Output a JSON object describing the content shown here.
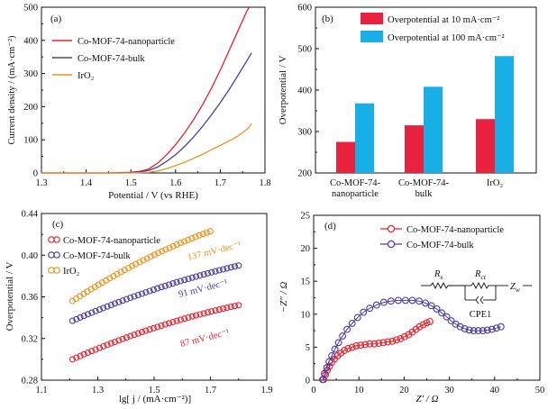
{
  "chart_data": [
    {
      "panel": "(a)",
      "type": "line",
      "xlabel": "Potential / V (vs RHE)",
      "ylabel": "Current density / (mA·cm⁻²)",
      "xlim": [
        1.3,
        1.8
      ],
      "ylim": [
        0,
        500
      ],
      "xticks": [
        "1.3",
        "1.4",
        "1.5",
        "1.6",
        "1.7",
        "1.8"
      ],
      "yticks": [
        "0",
        "100",
        "200",
        "300",
        "400",
        "500"
      ],
      "legend_position": "top-left",
      "series": [
        {
          "name": "Co-MOF-74-nanoparticle",
          "color": "#e8222e",
          "x": [
            1.3,
            1.45,
            1.5,
            1.52,
            1.54,
            1.56,
            1.58,
            1.6,
            1.62,
            1.64,
            1.66,
            1.68,
            1.7,
            1.72,
            1.74,
            1.76,
            1.765
          ],
          "y": [
            0,
            0,
            2,
            5,
            12,
            30,
            55,
            85,
            120,
            160,
            205,
            255,
            310,
            370,
            430,
            490,
            500
          ]
        },
        {
          "name": "Co-MOF-74-bulk",
          "color": "#4b3ea5",
          "x": [
            1.3,
            1.48,
            1.52,
            1.54,
            1.56,
            1.58,
            1.6,
            1.62,
            1.64,
            1.66,
            1.68,
            1.7,
            1.72,
            1.74,
            1.76,
            1.77
          ],
          "y": [
            0,
            0,
            3,
            8,
            18,
            35,
            55,
            80,
            108,
            140,
            175,
            212,
            252,
            295,
            340,
            362
          ]
        },
        {
          "name": "IrO₂",
          "color": "#f0931e",
          "x": [
            1.3,
            1.5,
            1.54,
            1.56,
            1.58,
            1.6,
            1.62,
            1.64,
            1.66,
            1.68,
            1.7,
            1.72,
            1.74,
            1.76,
            1.77
          ],
          "y": [
            0,
            0,
            2,
            6,
            13,
            22,
            32,
            44,
            56,
            70,
            83,
            97,
            112,
            132,
            148
          ]
        }
      ]
    },
    {
      "panel": "(b)",
      "type": "bar",
      "ylabel": "Overpotential / V",
      "ylim": [
        200,
        600
      ],
      "yticks": [
        "200",
        "300",
        "400",
        "500",
        "600"
      ],
      "categories": [
        [
          "Co-MOF-74-",
          "nanoparticle"
        ],
        [
          "Co-MOF-74-",
          "bulk"
        ],
        [
          "IrO₂"
        ]
      ],
      "legend_position": "top-left",
      "series": [
        {
          "name": "Overpotential at 10 mA·cm⁻²",
          "color": "#e8223f",
          "values": [
            275,
            315,
            330
          ]
        },
        {
          "name": "Overpotential at 100 mA·cm⁻²",
          "color": "#18aee6",
          "values": [
            368,
            408,
            482
          ]
        }
      ]
    },
    {
      "panel": "(c)",
      "type": "scatter",
      "xlabel": "lg[ j / (mA·cm⁻²)]",
      "ylabel": "Overpotential / V",
      "xlim": [
        1.1,
        1.9
      ],
      "ylim": [
        0.28,
        0.44
      ],
      "xticks": [
        "1.1",
        "1.3",
        "1.5",
        "1.7",
        "1.9"
      ],
      "yticks": [
        "0.28",
        "0.32",
        "0.36",
        "0.40",
        "0.44"
      ],
      "legend_position": "top-left",
      "series": [
        {
          "name": "Co-MOF-74-nanoparticle",
          "color": "#e8222e",
          "x_range": [
            1.21,
            1.8
          ],
          "y_range": [
            0.3,
            0.352
          ],
          "curve": 0.35,
          "count": 44
        },
        {
          "name": "Co-MOF-74-bulk",
          "color": "#4b3ea5",
          "x_range": [
            1.21,
            1.8
          ],
          "y_range": [
            0.337,
            0.39
          ],
          "curve": 0.3,
          "count": 44
        },
        {
          "name": "IrO₂",
          "color": "#f0931e",
          "x_range": [
            1.21,
            1.7
          ],
          "y_range": [
            0.356,
            0.423
          ],
          "curve": 0.28,
          "count": 38
        }
      ],
      "annotations": [
        {
          "text": "137 mV·dec⁻¹",
          "color": "#f0931e"
        },
        {
          "text": "91 mV·dec⁻¹",
          "color": "#4b3ea5"
        },
        {
          "text": "87 mV·dec⁻¹",
          "color": "#e8222e"
        }
      ]
    },
    {
      "panel": "(d)",
      "type": "scatter",
      "xlabel": "Z′ / Ω",
      "ylabel": "−Z″ / Ω",
      "xlim": [
        0,
        50
      ],
      "ylim": [
        0,
        25
      ],
      "xticks": [
        "0",
        "10",
        "20",
        "30",
        "40",
        "50"
      ],
      "yticks": [
        "0",
        "5",
        "10",
        "15",
        "20",
        "25"
      ],
      "legend_position": "top-center",
      "series": [
        {
          "name": "Co-MOF-74-nanoparticle",
          "color": "#e8222e",
          "x": [
            2.2,
            2.6,
            3.0,
            3.5,
            4.0,
            4.6,
            5.3,
            6.0,
            6.8,
            7.6,
            8.5,
            9.4,
            10.4,
            11.4,
            12.4,
            13.4,
            14.4,
            15.4,
            16.4,
            17.4,
            18.3,
            19.2,
            20.1,
            21.0,
            21.8,
            22.6,
            23.4,
            24.2,
            25.0,
            25.7
          ],
          "y": [
            0.1,
            0.8,
            1.5,
            2.1,
            2.7,
            3.2,
            3.7,
            4.1,
            4.5,
            4.8,
            5.0,
            5.2,
            5.3,
            5.4,
            5.5,
            5.5,
            5.6,
            5.7,
            5.8,
            5.9,
            6.1,
            6.3,
            6.6,
            6.9,
            7.3,
            7.7,
            8.1,
            8.4,
            8.7,
            8.9
          ]
        },
        {
          "name": "Co-MOF-74-bulk",
          "color": "#4b3ea5",
          "x": [
            2.0,
            2.4,
            2.9,
            3.4,
            4.0,
            4.7,
            5.5,
            6.4,
            7.4,
            8.5,
            9.7,
            11.0,
            12.4,
            13.9,
            15.5,
            17.1,
            18.7,
            20.3,
            21.8,
            23.3,
            24.7,
            26.0,
            27.2,
            28.3,
            29.4,
            30.4,
            31.4,
            32.4,
            33.4,
            34.4,
            35.4,
            36.4,
            37.4,
            38.4,
            39.4,
            40.4,
            41.4
          ],
          "y": [
            0.1,
            1.0,
            1.9,
            2.8,
            3.7,
            4.7,
            5.7,
            6.7,
            7.7,
            8.6,
            9.5,
            10.3,
            10.9,
            11.4,
            11.8,
            12.0,
            12.1,
            12.1,
            12.1,
            12.0,
            11.7,
            11.3,
            10.8,
            10.2,
            9.6,
            9.0,
            8.5,
            8.1,
            7.8,
            7.6,
            7.5,
            7.5,
            7.5,
            7.6,
            7.7,
            7.9,
            8.1
          ]
        }
      ],
      "circuit": {
        "r_s": "R",
        "r_s_sub": "s",
        "r_ct": "R",
        "r_ct_sub": "ct",
        "z_w": "Z",
        "z_w_sub": "w",
        "cpe": "CPE1"
      }
    }
  ]
}
